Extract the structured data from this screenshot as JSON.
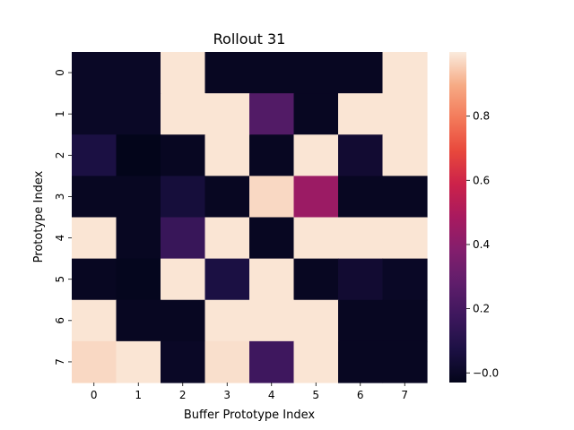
{
  "chart_data": {
    "type": "heatmap",
    "title": "Rollout 31",
    "xlabel": "Buffer Prototype Index",
    "ylabel": "Prototype Index",
    "x_ticks": [
      "0",
      "1",
      "2",
      "3",
      "4",
      "5",
      "6",
      "7"
    ],
    "y_ticks": [
      "0",
      "1",
      "2",
      "3",
      "4",
      "5",
      "6",
      "7"
    ],
    "values": [
      [
        0.0,
        0.0,
        0.99,
        -0.01,
        -0.01,
        -0.01,
        -0.01,
        0.99
      ],
      [
        0.0,
        0.0,
        0.99,
        0.99,
        0.24,
        -0.01,
        0.99,
        0.99
      ],
      [
        0.07,
        -0.03,
        -0.01,
        0.99,
        -0.01,
        0.99,
        0.03,
        0.99
      ],
      [
        -0.01,
        -0.01,
        0.05,
        -0.01,
        0.97,
        0.45,
        -0.01,
        -0.01
      ],
      [
        0.99,
        -0.01,
        0.16,
        0.99,
        -0.01,
        0.99,
        0.99,
        0.99
      ],
      [
        -0.01,
        -0.02,
        0.99,
        0.07,
        0.99,
        -0.01,
        0.03,
        0.0
      ],
      [
        0.99,
        -0.01,
        -0.01,
        0.99,
        0.99,
        0.99,
        -0.01,
        -0.01
      ],
      [
        0.97,
        0.99,
        0.0,
        0.98,
        0.18,
        0.99,
        -0.01,
        -0.01
      ]
    ],
    "colorbar": {
      "min": -0.03,
      "max": 1.0,
      "ticks": [
        0.0,
        0.2,
        0.4,
        0.6,
        0.8
      ],
      "tick_labels": [
        "−0.0",
        "0.2",
        "0.4",
        "0.6",
        "0.8"
      ],
      "colormap": "rocket"
    },
    "grid": false
  }
}
